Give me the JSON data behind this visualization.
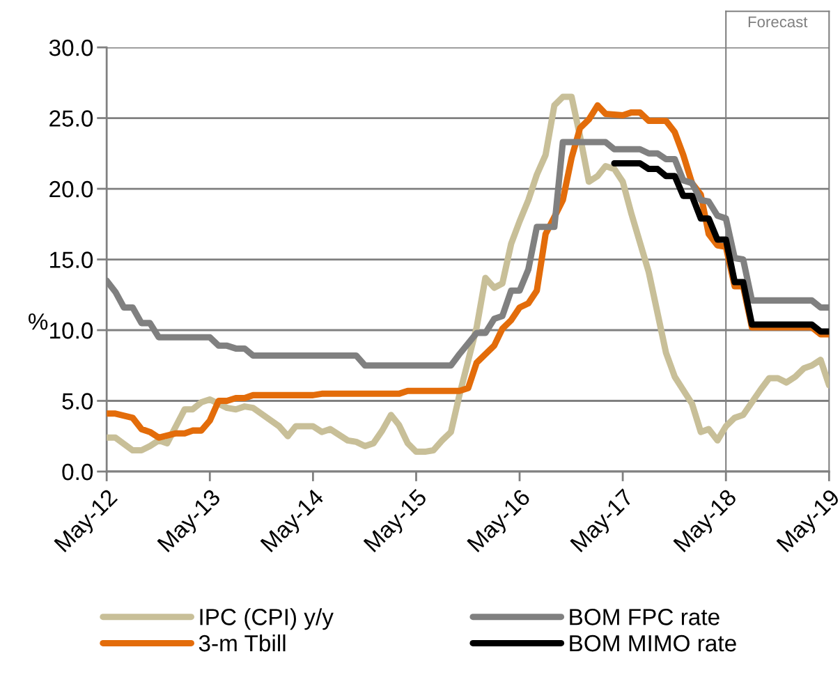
{
  "chart_data": {
    "type": "line",
    "ylabel": "%",
    "xlim": [
      "2012-05",
      "2019-05"
    ],
    "xticks": [
      {
        "value": "2012-05",
        "label": "May-12"
      },
      {
        "value": "2013-05",
        "label": "May-13"
      },
      {
        "value": "2014-05",
        "label": "May-14"
      },
      {
        "value": "2015-05",
        "label": "May-15"
      },
      {
        "value": "2016-05",
        "label": "May-16"
      },
      {
        "value": "2017-05",
        "label": "May-17"
      },
      {
        "value": "2018-05",
        "label": "May-18"
      },
      {
        "value": "2019-05",
        "label": "May-19"
      }
    ],
    "ylim": [
      0,
      30
    ],
    "yticks": [
      {
        "value": 0,
        "label": "0.0"
      },
      {
        "value": 5,
        "label": "5.0"
      },
      {
        "value": 10,
        "label": "10.0"
      },
      {
        "value": 15,
        "label": "15.0"
      },
      {
        "value": 20,
        "label": "20.0"
      },
      {
        "value": 25,
        "label": "25.0"
      },
      {
        "value": 30,
        "label": "30.0"
      }
    ],
    "grid": "y",
    "legend": "bottom",
    "ref_lines": [
      {
        "axis": "x",
        "value": "2018-05",
        "label": "Forecast",
        "color": "#808080"
      }
    ],
    "series": [
      {
        "name": "IPC (CPI) y/y",
        "color": "#c8bf98",
        "x": [
          "2012-05",
          "2012-06",
          "2012-08",
          "2012-09",
          "2012-10",
          "2012-11",
          "2012-12",
          "2013-02",
          "2013-03",
          "2013-04",
          "2013-05",
          "2013-07",
          "2013-08",
          "2013-09",
          "2013-10",
          "2014-01",
          "2014-02",
          "2014-03",
          "2014-05",
          "2014-06",
          "2014-07",
          "2014-09",
          "2014-10",
          "2014-11",
          "2014-12",
          "2015-01",
          "2015-02",
          "2015-03",
          "2015-04",
          "2015-05",
          "2015-06",
          "2015-07",
          "2015-08",
          "2015-09",
          "2015-10",
          "2015-12",
          "2016-01",
          "2016-02",
          "2016-03",
          "2016-04",
          "2016-05",
          "2016-06",
          "2016-07",
          "2016-08",
          "2016-09",
          "2016-10",
          "2016-11",
          "2016-12",
          "2017-01",
          "2017-02",
          "2017-03",
          "2017-04",
          "2017-05",
          "2017-06",
          "2017-08",
          "2017-10",
          "2017-11",
          "2018-01",
          "2018-02",
          "2018-03",
          "2018-04",
          "2018-05",
          "2018-06",
          "2018-07",
          "2018-09",
          "2018-10",
          "2018-11",
          "2018-12",
          "2019-01",
          "2019-02",
          "2019-03",
          "2019-04",
          "2019-05"
        ],
        "values": [
          2.4,
          2.4,
          1.5,
          1.5,
          1.8,
          2.2,
          2.0,
          4.4,
          4.4,
          4.9,
          5.1,
          4.5,
          4.4,
          4.6,
          4.5,
          3.2,
          2.5,
          3.2,
          3.2,
          2.8,
          3.0,
          2.2,
          2.1,
          1.8,
          2.0,
          2.9,
          4.0,
          3.3,
          2.0,
          1.4,
          1.4,
          1.5,
          2.2,
          2.8,
          5.4,
          10.2,
          13.7,
          13.0,
          13.3,
          16.1,
          17.7,
          19.2,
          21.0,
          22.4,
          25.9,
          26.5,
          26.5,
          23.7,
          20.5,
          20.9,
          21.6,
          21.4,
          20.5,
          18.2,
          14.1,
          8.4,
          6.7,
          4.8,
          2.8,
          3.0,
          2.2,
          3.2,
          3.8,
          4.0,
          5.8,
          6.6,
          6.6,
          6.3,
          6.7,
          7.3,
          7.5,
          7.9,
          6.1
        ]
      },
      {
        "name": "3-m Tbill",
        "color": "#e36c0a",
        "x": [
          "2012-05",
          "2012-06",
          "2012-08",
          "2012-09",
          "2012-10",
          "2012-11",
          "2013-01",
          "2013-02",
          "2013-03",
          "2013-04",
          "2013-05",
          "2013-06",
          "2013-07",
          "2013-08",
          "2013-09",
          "2013-10",
          "2014-05",
          "2014-06",
          "2015-03",
          "2015-04",
          "2015-10",
          "2015-11",
          "2015-12",
          "2016-02",
          "2016-03",
          "2016-04",
          "2016-05",
          "2016-06",
          "2016-07",
          "2016-08",
          "2016-09",
          "2016-10",
          "2016-11",
          "2016-12",
          "2017-01",
          "2017-02",
          "2017-03",
          "2017-05",
          "2017-06",
          "2017-07",
          "2017-08",
          "2017-10",
          "2017-11",
          "2017-12",
          "2018-01",
          "2018-02",
          "2018-03",
          "2018-04",
          "2018-05",
          "2018-06",
          "2018-07",
          "2018-08",
          "2019-03",
          "2019-04",
          "2019-05"
        ],
        "values": [
          4.1,
          4.1,
          3.8,
          3.0,
          2.8,
          2.4,
          2.7,
          2.7,
          2.9,
          2.9,
          3.6,
          5.0,
          5.0,
          5.2,
          5.2,
          5.4,
          5.4,
          5.5,
          5.5,
          5.7,
          5.7,
          5.9,
          7.7,
          8.9,
          10.1,
          10.7,
          11.6,
          11.9,
          12.8,
          16.8,
          18.0,
          19.2,
          22.2,
          24.3,
          24.9,
          25.9,
          25.3,
          25.2,
          25.4,
          25.4,
          24.8,
          24.8,
          24.0,
          22.4,
          20.4,
          19.6,
          16.8,
          16.0,
          15.9,
          13.1,
          13.1,
          10.2,
          10.2,
          9.7,
          9.7
        ]
      },
      {
        "name": "BOM FPC rate",
        "color": "#808080",
        "x": [
          "2012-05",
          "2012-06",
          "2012-07",
          "2012-08",
          "2012-09",
          "2012-10",
          "2012-11",
          "2013-05",
          "2013-06",
          "2013-07",
          "2013-08",
          "2013-09",
          "2013-10",
          "2014-10",
          "2014-11",
          "2015-09",
          "2015-10",
          "2015-12",
          "2016-01",
          "2016-02",
          "2016-03",
          "2016-04",
          "2016-05",
          "2016-06",
          "2016-07",
          "2016-09",
          "2016-10",
          "2017-03",
          "2017-04",
          "2017-07",
          "2017-08",
          "2017-09",
          "2017-10",
          "2017-11",
          "2017-12",
          "2018-01",
          "2018-02",
          "2018-03",
          "2018-04",
          "2018-05",
          "2018-06",
          "2018-07",
          "2018-08",
          "2019-03",
          "2019-04",
          "2019-05"
        ],
        "values": [
          13.5,
          12.7,
          11.6,
          11.6,
          10.5,
          10.5,
          9.5,
          9.5,
          8.9,
          8.9,
          8.7,
          8.7,
          8.2,
          8.2,
          7.5,
          7.5,
          8.3,
          9.8,
          9.8,
          10.8,
          11.0,
          12.8,
          12.8,
          14.3,
          17.3,
          17.3,
          23.3,
          23.3,
          22.8,
          22.8,
          22.5,
          22.5,
          22.1,
          22.1,
          20.6,
          20.4,
          19.2,
          19.1,
          18.1,
          17.9,
          15.1,
          15.0,
          12.1,
          12.1,
          11.6,
          11.6
        ]
      },
      {
        "name": "BOM MIMO rate",
        "color": "#000000",
        "x": [
          "2017-04",
          "2017-07",
          "2017-08",
          "2017-09",
          "2017-10",
          "2017-11",
          "2017-12",
          "2018-01",
          "2018-02",
          "2018-03",
          "2018-04",
          "2018-05",
          "2018-06",
          "2018-07",
          "2018-08",
          "2019-03",
          "2019-04",
          "2019-05"
        ],
        "values": [
          21.8,
          21.8,
          21.4,
          21.4,
          20.9,
          20.9,
          19.5,
          19.5,
          17.9,
          17.9,
          16.4,
          16.4,
          13.4,
          13.4,
          10.4,
          10.4,
          9.9,
          9.9
        ]
      }
    ]
  }
}
